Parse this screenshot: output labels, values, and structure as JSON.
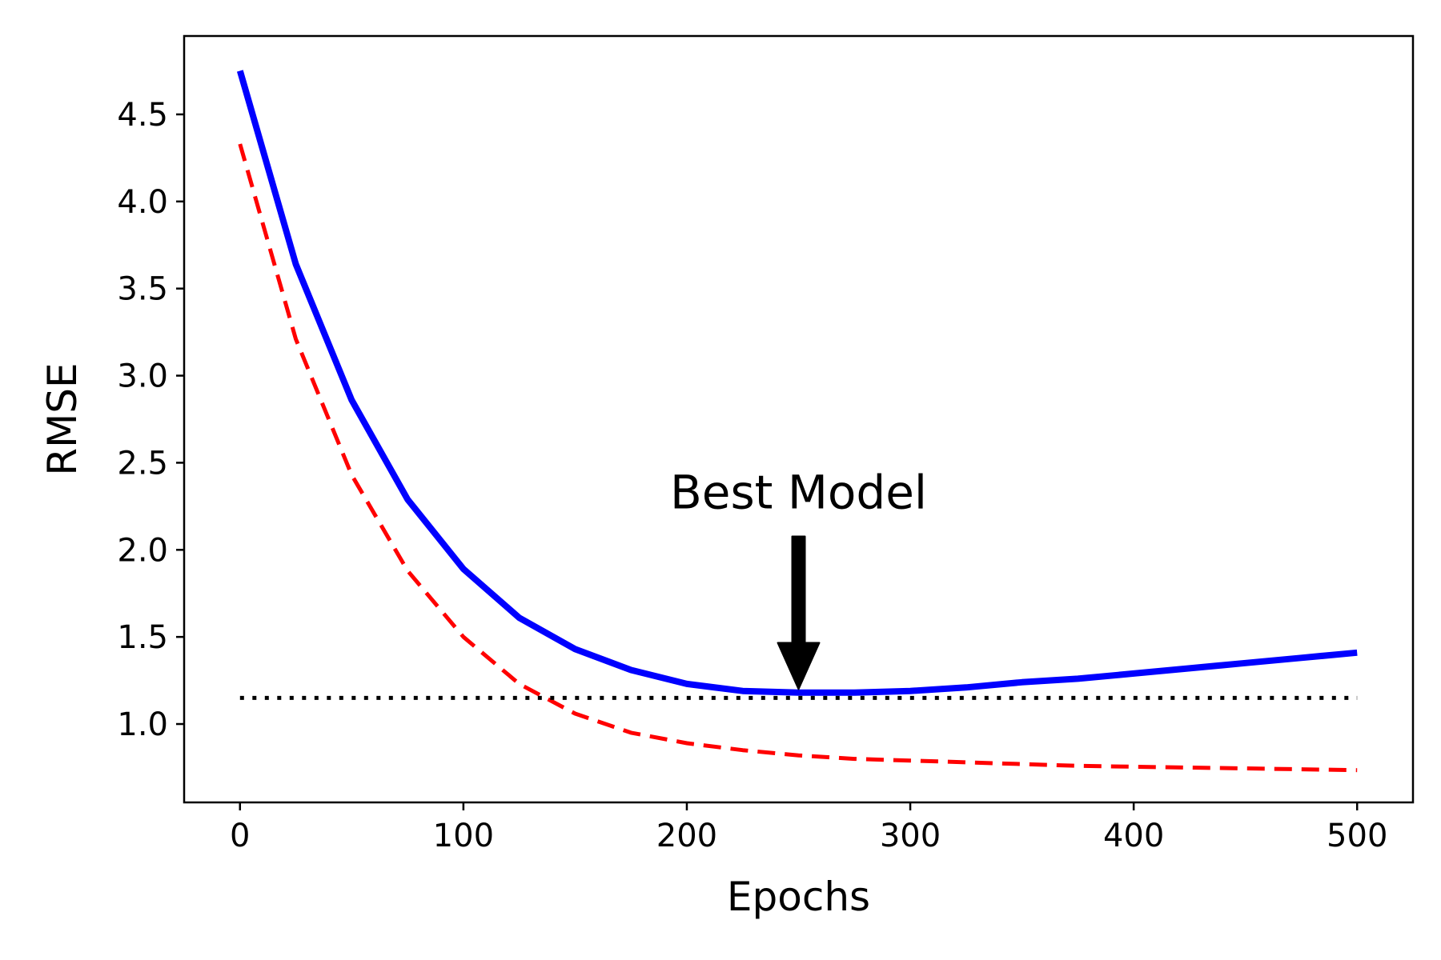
{
  "chart_data": {
    "type": "line",
    "xlabel": "Epochs",
    "ylabel": "RMSE",
    "xlim": [
      -25,
      525
    ],
    "ylim": [
      0.55,
      4.95
    ],
    "xticks": [
      0,
      100,
      200,
      300,
      400,
      500
    ],
    "xtick_labels": [
      "0",
      "100",
      "200",
      "300",
      "400",
      "500"
    ],
    "yticks": [
      1.0,
      1.5,
      2.0,
      2.5,
      3.0,
      3.5,
      4.0,
      4.5
    ],
    "ytick_labels": [
      "1.0",
      "1.5",
      "2.0",
      "2.5",
      "3.0",
      "3.5",
      "4.0",
      "4.5"
    ],
    "grid": false,
    "legend": "none",
    "series": [
      {
        "style": "solid",
        "color": "#0000ff",
        "x": [
          0,
          25,
          50,
          75,
          100,
          125,
          150,
          175,
          200,
          225,
          250,
          275,
          300,
          325,
          350,
          375,
          400,
          425,
          450,
          475,
          500
        ],
        "y": [
          4.75,
          3.64,
          2.86,
          2.29,
          1.89,
          1.61,
          1.43,
          1.31,
          1.23,
          1.19,
          1.18,
          1.18,
          1.19,
          1.21,
          1.24,
          1.26,
          1.29,
          1.32,
          1.35,
          1.38,
          1.41
        ]
      },
      {
        "style": "dashed",
        "color": "#ff0000",
        "x": [
          0,
          25,
          50,
          75,
          100,
          125,
          150,
          175,
          200,
          225,
          250,
          275,
          300,
          325,
          350,
          375,
          400,
          425,
          450,
          475,
          500
        ],
        "y": [
          4.33,
          3.21,
          2.43,
          1.88,
          1.5,
          1.23,
          1.06,
          0.95,
          0.89,
          0.85,
          0.82,
          0.8,
          0.79,
          0.78,
          0.77,
          0.76,
          0.755,
          0.75,
          0.745,
          0.74,
          0.735
        ]
      },
      {
        "style": "dotted",
        "color": "#000000",
        "x": [
          0,
          500
        ],
        "y": [
          1.15,
          1.15
        ]
      }
    ],
    "annotation": {
      "text": "Best Model",
      "x": 250,
      "y": 1.2,
      "text_y": 2.1
    }
  }
}
